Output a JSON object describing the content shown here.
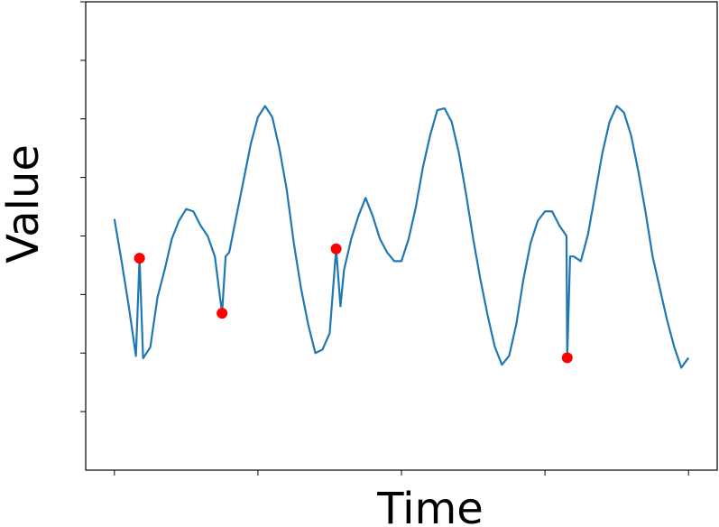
{
  "chart_data": {
    "type": "line",
    "x_label": "Time",
    "y_label": "Value",
    "x": [
      0,
      10,
      20,
      30,
      35,
      40,
      50,
      60,
      70,
      80,
      90,
      100,
      110,
      120,
      130,
      140,
      150,
      155,
      160,
      170,
      180,
      190,
      200,
      210,
      220,
      230,
      240,
      250,
      260,
      270,
      280,
      290,
      300,
      309,
      315,
      320,
      330,
      340,
      350,
      360,
      370,
      380,
      390,
      400,
      410,
      420,
      430,
      440,
      450,
      460,
      470,
      480,
      490,
      500,
      510,
      520,
      530,
      540,
      550,
      560,
      570,
      580,
      590,
      600,
      610,
      620,
      630,
      631,
      635,
      640,
      650,
      660,
      670,
      680,
      690,
      700,
      710,
      720,
      730,
      740,
      750,
      760,
      770,
      780,
      790,
      800
    ],
    "values": [
      0.29,
      -0.43,
      -1.2,
      -2.05,
      -0.38,
      -2.09,
      -1.9,
      -1.05,
      -0.58,
      -0.05,
      0.26,
      0.46,
      0.42,
      0.18,
      0,
      -0.35,
      -1.32,
      -0.35,
      -0.28,
      0.34,
      0.95,
      1.57,
      2.03,
      2.22,
      2.03,
      1.49,
      0.8,
      -0.12,
      -0.89,
      -1.51,
      -2,
      -1.94,
      -1.66,
      -0.22,
      -1.2,
      -0.58,
      -0.05,
      0.34,
      0.65,
      0.34,
      -0.05,
      -0.28,
      -0.43,
      -0.43,
      -0.05,
      0.49,
      1.18,
      1.72,
      2.15,
      2.18,
      1.95,
      1.42,
      0.72,
      -0.05,
      -0.74,
      -1.35,
      -1.89,
      -2.2,
      -2.05,
      -1.51,
      -0.74,
      -0.12,
      0.26,
      0.42,
      0.42,
      0.18,
      0,
      -2.08,
      -0.35,
      -0.35,
      -0.43,
      0.03,
      0.72,
      1.42,
      1.95,
      2.22,
      2.11,
      1.72,
      1.11,
      0.42,
      -0.35,
      -0.89,
      -1.43,
      -1.89,
      -2.25,
      -2.08
    ],
    "color": "#1f77b4",
    "anomalies": {
      "x": [
        35,
        150,
        309,
        631
      ],
      "values": [
        -0.38,
        -1.32,
        -0.22,
        -2.08
      ],
      "color": "#ff0000"
    },
    "xlim": [
      -40,
      840
    ],
    "ylim": [
      -4,
      4
    ],
    "xticks": [
      0,
      200,
      400,
      600,
      800
    ],
    "yticks": [
      -3,
      -2,
      -1,
      0,
      1,
      2,
      3,
      4
    ]
  }
}
